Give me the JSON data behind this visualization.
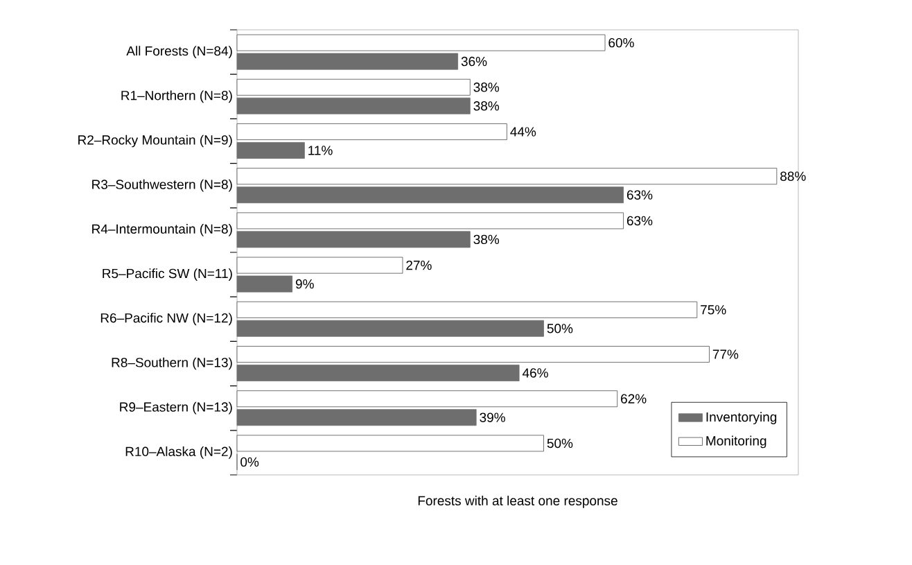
{
  "chart_data": {
    "type": "bar",
    "orientation": "horizontal",
    "xlabel": "Forests with at least one response",
    "categories": [
      "All Forests (N=84)",
      "R1–Northern (N=8)",
      "R2–Rocky Mountain (N=9)",
      "R3–Southwestern (N=8)",
      "R4–Intermountain (N=8)",
      "R5–Pacific SW (N=11)",
      "R6–Pacific NW (N=12)",
      "R8–Southern (N=13)",
      "R9–Eastern (N=13)",
      "R10–Alaska (N=2)"
    ],
    "series": [
      {
        "name": "Inventorying",
        "color": "#6e6e6e",
        "values": [
          36,
          38,
          11,
          63,
          38,
          9,
          50,
          46,
          39,
          0
        ],
        "value_labels": [
          "36%",
          "38%",
          "11%",
          "63%",
          "38%",
          "9%",
          "50%",
          "46%",
          "39%",
          "0%"
        ]
      },
      {
        "name": "Monitoring",
        "color": "#ffffff",
        "values": [
          60,
          38,
          44,
          88,
          63,
          27,
          75,
          77,
          62,
          50
        ],
        "value_labels": [
          "60%",
          "38%",
          "44%",
          "88%",
          "63%",
          "27%",
          "75%",
          "77%",
          "62%",
          "50%"
        ]
      }
    ],
    "legend": "bottom right",
    "grid": false
  }
}
